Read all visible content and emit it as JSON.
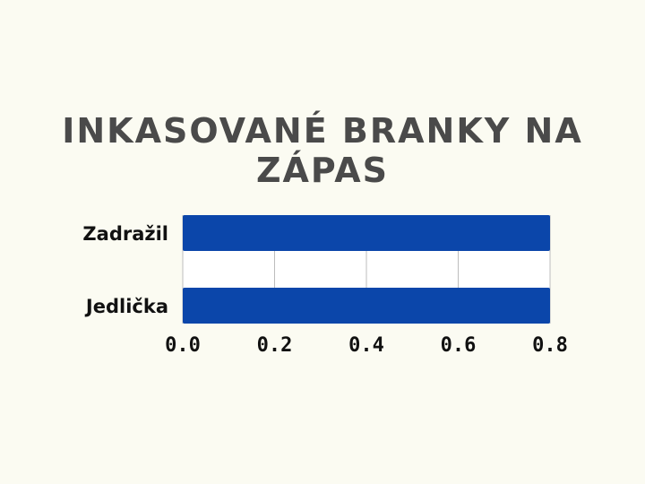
{
  "chart_data": {
    "type": "bar",
    "orientation": "horizontal",
    "title": "INKASOVANÉ BRANKY NA ZÁPAS",
    "categories": [
      "Zadražil",
      "Jedlička"
    ],
    "values": [
      0.8,
      0.8
    ],
    "xticks": [
      "0.0",
      "0.2",
      "0.4",
      "0.6",
      "0.8"
    ],
    "xlim": [
      0,
      0.8
    ],
    "grid": true,
    "bar_color": "#0b46aa",
    "title_color": "#4a4a4a"
  }
}
